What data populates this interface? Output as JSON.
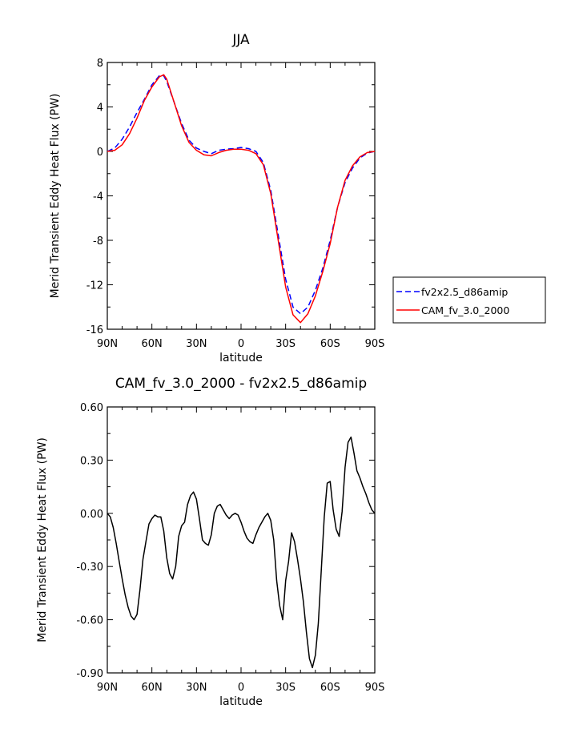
{
  "chart_data": [
    {
      "type": "line",
      "title": "JJA",
      "xlabel": "latitude",
      "ylabel": "Merid Transient Eddy Heat Flux (PW)",
      "x_ticks": [
        "90N",
        "60N",
        "30N",
        "0",
        "30S",
        "60S",
        "90S"
      ],
      "x_tick_values": [
        90,
        60,
        30,
        0,
        -30,
        -60,
        -90
      ],
      "xlim": [
        90,
        -90
      ],
      "y_ticks": [
        "8",
        "4",
        "0",
        "-4",
        "-8",
        "-12",
        "-16"
      ],
      "y_tick_values": [
        8,
        4,
        0,
        -4,
        -8,
        -12,
        -16
      ],
      "ylim": [
        -16,
        8
      ],
      "legend_position": "right, outside plot",
      "series": [
        {
          "name": "fv2x2.5_d86amip",
          "color": "#0000ff",
          "style": "dashed",
          "x": [
            90,
            85,
            80,
            75,
            70,
            65,
            60,
            55,
            52,
            50,
            45,
            40,
            35,
            30,
            25,
            20,
            15,
            10,
            5,
            0,
            -5,
            -10,
            -15,
            -20,
            -25,
            -30,
            -35,
            -40,
            -45,
            -50,
            -55,
            -60,
            -65,
            -70,
            -75,
            -80,
            -85,
            -90
          ],
          "y": [
            0,
            0.3,
            1.1,
            2.2,
            3.5,
            4.7,
            6.0,
            6.8,
            6.8,
            6.3,
            4.4,
            2.5,
            1.0,
            0.3,
            0.0,
            -0.2,
            0.1,
            0.2,
            0.25,
            0.35,
            0.25,
            0.0,
            -1.0,
            -3.5,
            -7.5,
            -11.5,
            -14.0,
            -14.6,
            -14.0,
            -12.5,
            -10.5,
            -8.0,
            -5.0,
            -2.8,
            -1.5,
            -0.6,
            -0.15,
            0
          ]
        },
        {
          "name": "CAM_fv_3.0_2000",
          "color": "#ff0000",
          "style": "solid",
          "x": [
            90,
            85,
            80,
            75,
            70,
            65,
            60,
            55,
            52,
            50,
            45,
            40,
            35,
            30,
            25,
            20,
            15,
            10,
            5,
            0,
            -5,
            -10,
            -15,
            -20,
            -25,
            -30,
            -35,
            -40,
            -45,
            -50,
            -55,
            -60,
            -65,
            -70,
            -75,
            -80,
            -85,
            -90
          ],
          "y": [
            0,
            0.1,
            0.6,
            1.6,
            3.0,
            4.6,
            5.8,
            6.7,
            6.9,
            6.5,
            4.4,
            2.3,
            0.8,
            0.1,
            -0.3,
            -0.4,
            -0.1,
            0.1,
            0.2,
            0.2,
            0.1,
            -0.2,
            -1.2,
            -3.8,
            -8.0,
            -12.2,
            -14.7,
            -15.4,
            -14.6,
            -13.0,
            -10.8,
            -8.3,
            -5.0,
            -2.6,
            -1.3,
            -0.5,
            -0.1,
            0
          ]
        }
      ]
    },
    {
      "type": "line",
      "title": "CAM_fv_3.0_2000 - fv2x2.5_d86amip",
      "xlabel": "latitude",
      "ylabel": "Merid Transient Eddy Heat Flux (PW)",
      "x_ticks": [
        "90N",
        "60N",
        "30N",
        "0",
        "30S",
        "60S",
        "90S"
      ],
      "x_tick_values": [
        90,
        60,
        30,
        0,
        -30,
        -60,
        -90
      ],
      "xlim": [
        90,
        -90
      ],
      "y_ticks": [
        "0.60",
        "0.30",
        "0.00",
        "-0.30",
        "-0.60",
        "-0.90"
      ],
      "y_tick_values": [
        0.6,
        0.3,
        0.0,
        -0.3,
        -0.6,
        -0.9
      ],
      "ylim": [
        -0.9,
        0.6
      ],
      "series": [
        {
          "color": "#000000",
          "style": "solid",
          "x": [
            90,
            88,
            86,
            84,
            82,
            80,
            78,
            76,
            74,
            72,
            70,
            68,
            66,
            64,
            62,
            60,
            58,
            56,
            54,
            52,
            50,
            48,
            46,
            44,
            42,
            40,
            38,
            36,
            34,
            32,
            30,
            28,
            26,
            24,
            22,
            20,
            18,
            16,
            14,
            12,
            10,
            8,
            6,
            4,
            2,
            0,
            -2,
            -4,
            -6,
            -8,
            -10,
            -12,
            -14,
            -16,
            -18,
            -20,
            -22,
            -24,
            -26,
            -28,
            -30,
            -32,
            -34,
            -36,
            -38,
            -40,
            -42,
            -44,
            -46,
            -48,
            -50,
            -52,
            -54,
            -56,
            -58,
            -60,
            -62,
            -64,
            -66,
            -68,
            -70,
            -72,
            -74,
            -76,
            -78,
            -80,
            -82,
            -84,
            -86,
            -88,
            -90
          ],
          "y": [
            0.0,
            -0.02,
            -0.08,
            -0.17,
            -0.27,
            -0.37,
            -0.46,
            -0.53,
            -0.58,
            -0.6,
            -0.57,
            -0.43,
            -0.26,
            -0.16,
            -0.06,
            -0.03,
            -0.01,
            -0.02,
            -0.02,
            -0.1,
            -0.25,
            -0.34,
            -0.37,
            -0.3,
            -0.13,
            -0.07,
            -0.05,
            0.05,
            0.1,
            0.12,
            0.08,
            -0.03,
            -0.15,
            -0.17,
            -0.18,
            -0.12,
            0.0,
            0.04,
            0.05,
            0.02,
            -0.01,
            -0.03,
            -0.01,
            0.0,
            -0.01,
            -0.05,
            -0.1,
            -0.14,
            -0.16,
            -0.17,
            -0.12,
            -0.08,
            -0.05,
            -0.02,
            0.0,
            -0.04,
            -0.15,
            -0.38,
            -0.52,
            -0.6,
            -0.38,
            -0.27,
            -0.11,
            -0.16,
            -0.26,
            -0.37,
            -0.5,
            -0.67,
            -0.82,
            -0.87,
            -0.8,
            -0.62,
            -0.32,
            -0.02,
            0.17,
            0.18,
            0.02,
            -0.09,
            -0.13,
            0.01,
            0.26,
            0.4,
            0.43,
            0.34,
            0.24,
            0.2,
            0.15,
            0.11,
            0.06,
            0.02,
            0.0
          ]
        }
      ]
    }
  ]
}
